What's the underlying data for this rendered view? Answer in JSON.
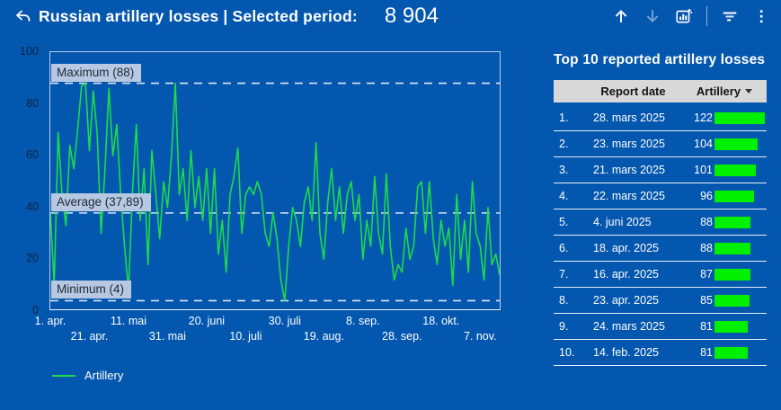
{
  "header": {
    "title": "Russian artillery losses | Selected period:",
    "selected_total": "8 904",
    "toolbar_icons": [
      "drill-up",
      "drill-down",
      "visual-chart",
      "filter",
      "more-options"
    ]
  },
  "chart_data": {
    "type": "line",
    "title": "",
    "xlabel": "",
    "ylabel": "",
    "ylim": [
      0,
      100
    ],
    "y_ticks": [
      100,
      80,
      60,
      40,
      20,
      0
    ],
    "x_total_days": 230,
    "x_ticks": [
      {
        "label": "1. apr.",
        "day": 0,
        "row": 1
      },
      {
        "label": "21. apr.",
        "day": 20,
        "row": 2
      },
      {
        "label": "11. mai",
        "day": 40,
        "row": 1
      },
      {
        "label": "31. mai",
        "day": 60,
        "row": 2
      },
      {
        "label": "20. juni",
        "day": 80,
        "row": 1
      },
      {
        "label": "10. juli",
        "day": 100,
        "row": 2
      },
      {
        "label": "30. juli",
        "day": 120,
        "row": 1
      },
      {
        "label": "19. aug.",
        "day": 140,
        "row": 2
      },
      {
        "label": "8. sep.",
        "day": 160,
        "row": 1
      },
      {
        "label": "28. sep.",
        "day": 180,
        "row": 2
      },
      {
        "label": "18. okt.",
        "day": 200,
        "row": 1
      },
      {
        "label": "7. nov.",
        "day": 220,
        "row": 2
      }
    ],
    "reference_lines": [
      {
        "name": "maximum",
        "label": "Maximum (88)",
        "value": 88
      },
      {
        "name": "average",
        "label": "Average (37,89)",
        "value": 37.89
      },
      {
        "name": "minimum",
        "label": "Minimum (4)",
        "value": 4
      }
    ],
    "legend": {
      "position": "bottom-left",
      "label": "Artillery"
    },
    "series": [
      {
        "name": "Artillery",
        "step_days": 2,
        "start_label": "1. apr.",
        "values": [
          38,
          10,
          69,
          45,
          33,
          64,
          55,
          70,
          87,
          88,
          62,
          85,
          68,
          30,
          55,
          86,
          60,
          72,
          45,
          25,
          8,
          45,
          72,
          35,
          55,
          18,
          62,
          45,
          28,
          50,
          40,
          60,
          88,
          45,
          55,
          35,
          62,
          40,
          52,
          35,
          55,
          30,
          55,
          22,
          35,
          15,
          45,
          52,
          63,
          30,
          45,
          48,
          45,
          50,
          45,
          30,
          25,
          38,
          28,
          12,
          4,
          25,
          40,
          35,
          25,
          42,
          48,
          35,
          65,
          30,
          20,
          42,
          55,
          35,
          48,
          30,
          45,
          50,
          35,
          45,
          20,
          35,
          25,
          52,
          30,
          22,
          53,
          25,
          12,
          18,
          15,
          32,
          20,
          25,
          48,
          50,
          30,
          50,
          28,
          18,
          35,
          25,
          32,
          10,
          45,
          20,
          35,
          15,
          50,
          30,
          25,
          12,
          40,
          18,
          22,
          14
        ]
      }
    ]
  },
  "table": {
    "title": "Top 10 reported artillery losses",
    "rank_header": "",
    "date_header": "Report date",
    "value_header": "Artillery",
    "sort_icon": "caret-down-icon",
    "bar_max": 122,
    "rows": [
      {
        "rank": "1.",
        "date": "28. mars 2025",
        "value": 122
      },
      {
        "rank": "2.",
        "date": "23. mars 2025",
        "value": 104
      },
      {
        "rank": "3.",
        "date": "21. mars 2025",
        "value": 101
      },
      {
        "rank": "4.",
        "date": "22. mars 2025",
        "value": 96
      },
      {
        "rank": "5.",
        "date": "4. juni 2025",
        "value": 88
      },
      {
        "rank": "6.",
        "date": "18. apr. 2025",
        "value": 88
      },
      {
        "rank": "7.",
        "date": "16. apr. 2025",
        "value": 87
      },
      {
        "rank": "8.",
        "date": "23. apr. 2025",
        "value": 85
      },
      {
        "rank": "9.",
        "date": "24. mars 2025",
        "value": 81
      },
      {
        "rank": "10.",
        "date": "14. feb. 2025",
        "value": 81
      }
    ]
  },
  "colors": {
    "background": "#0457AE",
    "chart_line": "#1BDC4C",
    "table_bar": "#00F000",
    "reference_label_bg": "#B7C8E2",
    "reference_line": "#DDE6F2",
    "header_row_bg": "#D8D8D8",
    "axis_text_dark": "#0A2342"
  }
}
